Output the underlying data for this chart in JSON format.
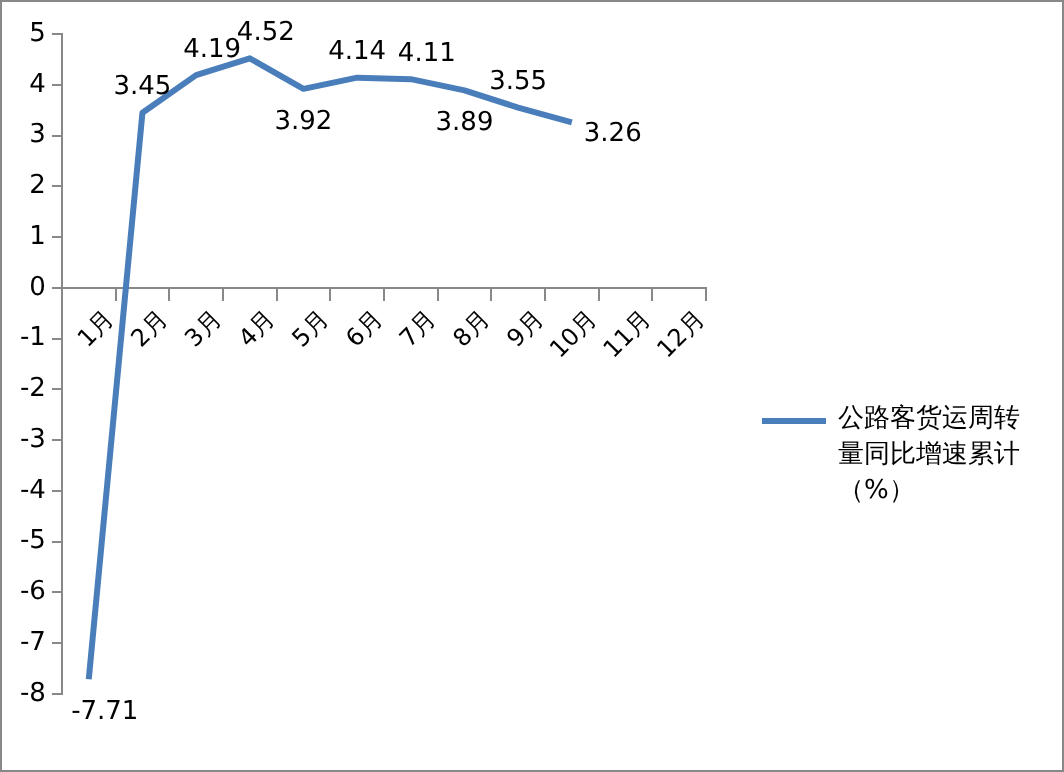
{
  "chart_data": {
    "type": "line",
    "categories": [
      "1月",
      "2月",
      "3月",
      "4月",
      "5月",
      "6月",
      "7月",
      "8月",
      "9月",
      "10月",
      "11月",
      "12月"
    ],
    "series": [
      {
        "name": "公路客货运周转量同比增速累计（%）",
        "color": "#4a7ebb",
        "values": [
          -7.71,
          3.45,
          4.19,
          4.52,
          3.92,
          4.14,
          4.11,
          3.89,
          3.55,
          3.26,
          null,
          null
        ]
      }
    ],
    "ylim": [
      -8,
      5
    ],
    "yticks": [
      -8,
      -7,
      -6,
      -5,
      -4,
      -3,
      -2,
      -1,
      0,
      1,
      2,
      3,
      4,
      5
    ],
    "data_labels": true,
    "grid": false,
    "legend": "right",
    "marker": "none",
    "line_style": "solid"
  }
}
